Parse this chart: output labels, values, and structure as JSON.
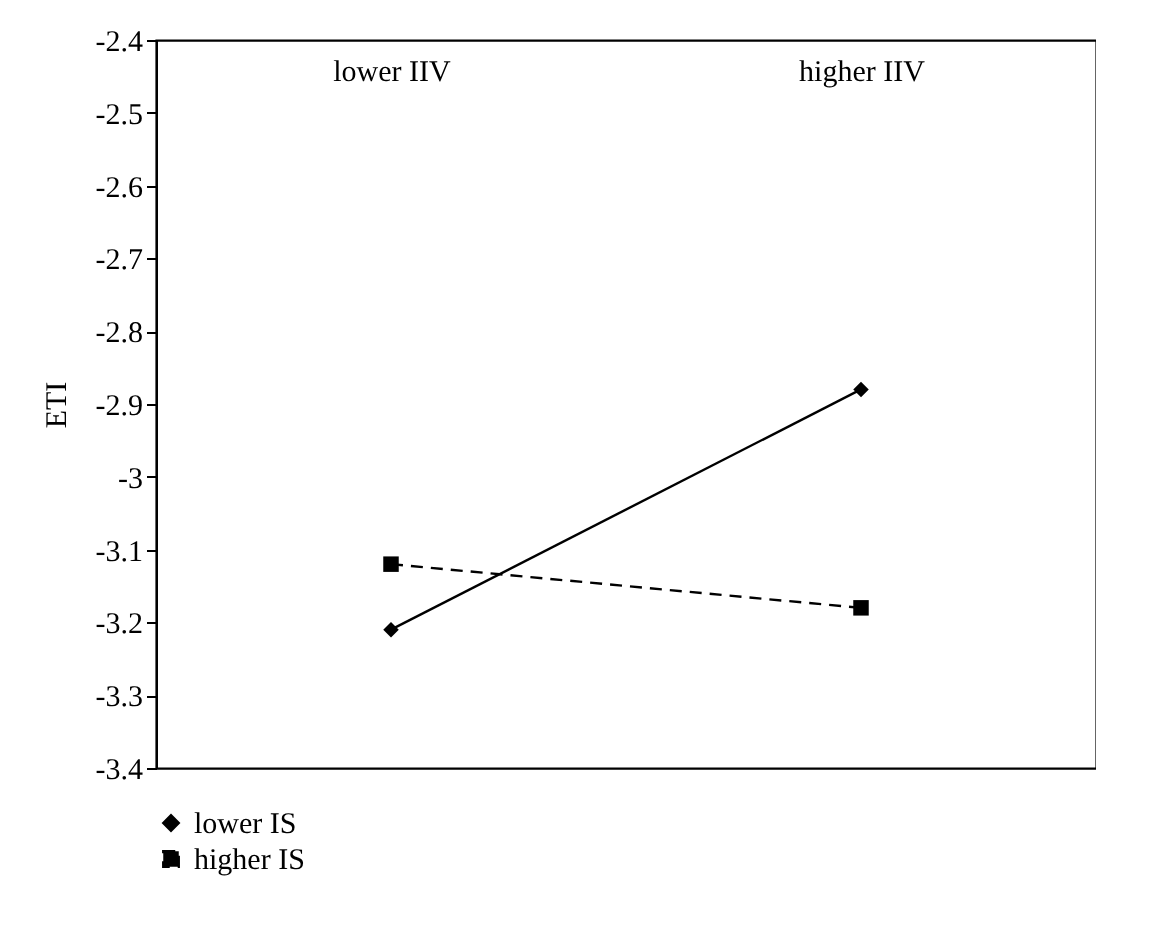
{
  "chart_data": {
    "type": "line",
    "ylabel": "ETI",
    "categories": [
      "lower IIV",
      "higher IIV"
    ],
    "series": [
      {
        "name": "lower IS",
        "color": "#000000",
        "values": [
          -3.21,
          -2.88
        ],
        "marker": "diamond",
        "line_style": "solid"
      },
      {
        "name": "higher IS",
        "color": "#000000",
        "values": [
          -3.12,
          -3.18
        ],
        "marker": "square",
        "line_style": "dashed"
      }
    ],
    "ylim": [
      -3.4,
      -2.4
    ],
    "yticks": [
      -2.4,
      -2.5,
      -2.6,
      -2.7,
      -2.8,
      -2.9,
      -3,
      -3.1,
      -3.2,
      -3.3,
      -3.4
    ],
    "grid": false,
    "legend": "bottom left"
  }
}
